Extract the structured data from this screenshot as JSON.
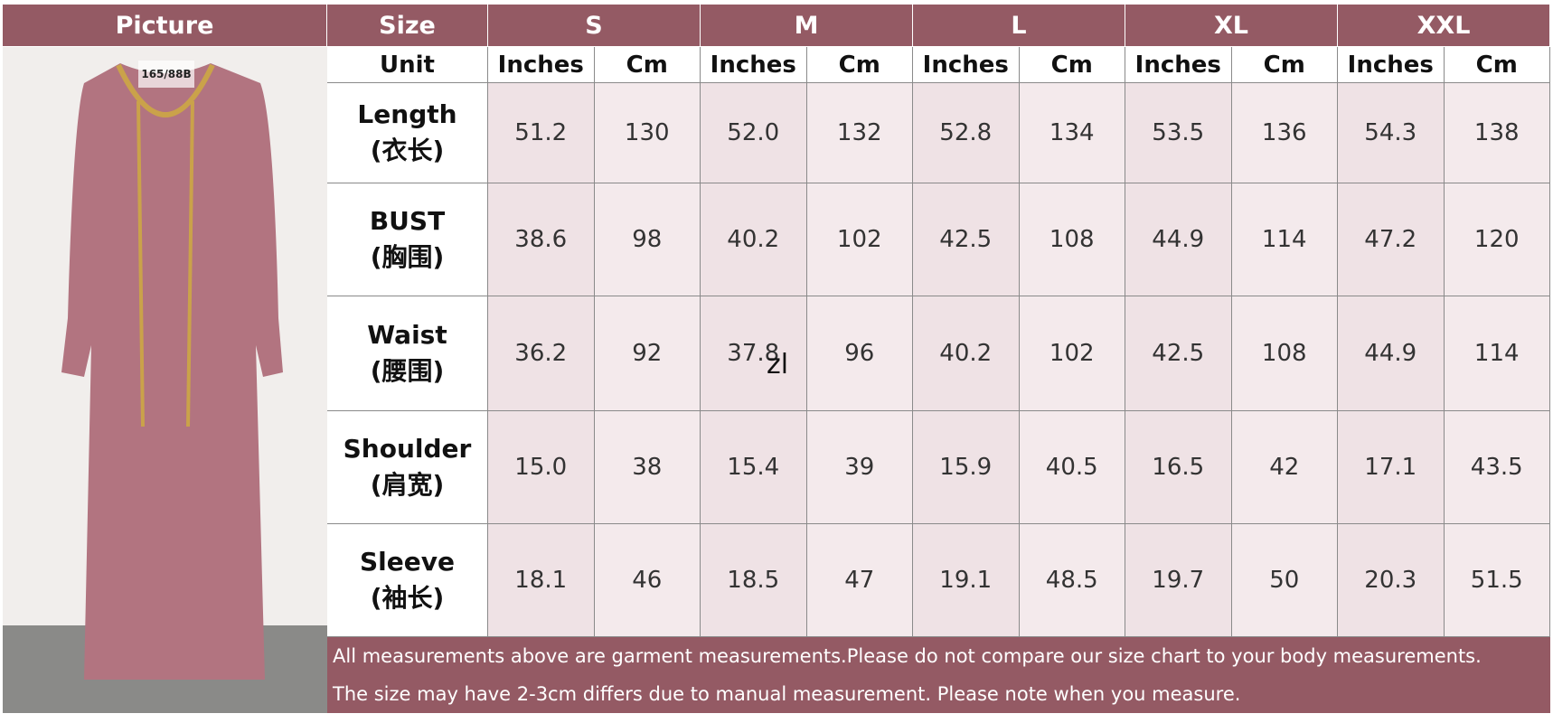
{
  "header": {
    "picture": "Picture",
    "size": "Size",
    "unit": "Unit",
    "tag": "165/88B"
  },
  "sizes": [
    "S",
    "M",
    "L",
    "XL",
    "XXL"
  ],
  "units": [
    "Inches",
    "Cm"
  ],
  "table": {
    "rows": [
      {
        "name": "Length",
        "name_cn": "(衣长)",
        "values": [
          "51.2",
          "130",
          "52.0",
          "132",
          "52.8",
          "134",
          "53.5",
          "136",
          "54.3",
          "138"
        ]
      },
      {
        "name": "BUST",
        "name_cn": "(胸围)",
        "values": [
          "38.6",
          "98",
          "40.2",
          "102",
          "42.5",
          "108",
          "44.9",
          "114",
          "47.2",
          "120"
        ]
      },
      {
        "name": "Waist",
        "name_cn": "(腰围)",
        "values": [
          "36.2",
          "92",
          "37.8",
          "96",
          "40.2",
          "102",
          "42.5",
          "108",
          "44.9",
          "114"
        ]
      },
      {
        "name": "Shoulder",
        "name_cn": "(肩宽)",
        "values": [
          "15.0",
          "38",
          "15.4",
          "39",
          "15.9",
          "40.5",
          "16.5",
          "42",
          "17.1",
          "43.5"
        ]
      },
      {
        "name": "Sleeve",
        "name_cn": "(袖长)",
        "values": [
          "18.1",
          "46",
          "18.5",
          "47",
          "19.1",
          "48.5",
          "19.7",
          "50",
          "20.3",
          "51.5"
        ]
      }
    ]
  },
  "watermark": "zl",
  "notes": [
    "All measurements above are garment measurements.Please do not compare our size chart to your body measurements.",
    "The size may have 2-3cm differs due to manual measurement. Please note when you measure."
  ]
}
